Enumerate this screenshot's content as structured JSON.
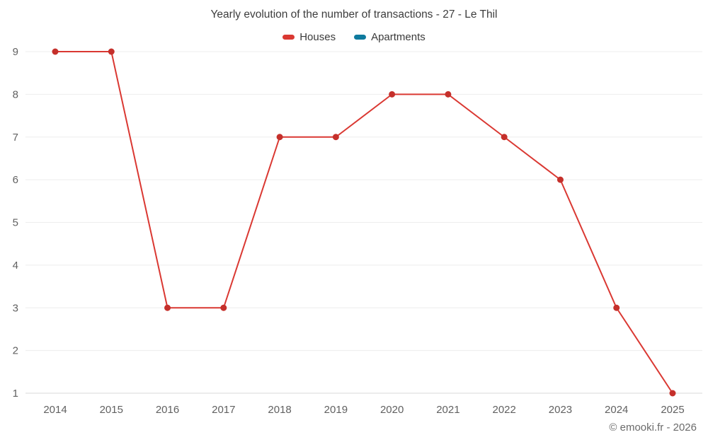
{
  "chart_data": {
    "type": "line",
    "title": "Yearly evolution of the number of transactions - 27 - Le Thil",
    "categories": [
      "2014",
      "2015",
      "2016",
      "2017",
      "2018",
      "2019",
      "2020",
      "2021",
      "2022",
      "2023",
      "2024",
      "2025"
    ],
    "series": [
      {
        "name": "Houses",
        "color": "#da3832",
        "marker_color": "#c5302b",
        "values": [
          9,
          9,
          3,
          3,
          7,
          7,
          8,
          8,
          7,
          6,
          3,
          1
        ]
      },
      {
        "name": "Apartments",
        "color": "#0e7a9e",
        "marker_color": "#0e7a9e",
        "values": []
      }
    ],
    "xlabel": "",
    "ylabel": "",
    "ylim": [
      1,
      9
    ],
    "yticks": [
      1,
      2,
      3,
      4,
      5,
      6,
      7,
      8,
      9
    ],
    "grid": "horizontal",
    "legend_position": "top"
  },
  "footer": {
    "copyright": "© emooki.fr - 2026"
  }
}
